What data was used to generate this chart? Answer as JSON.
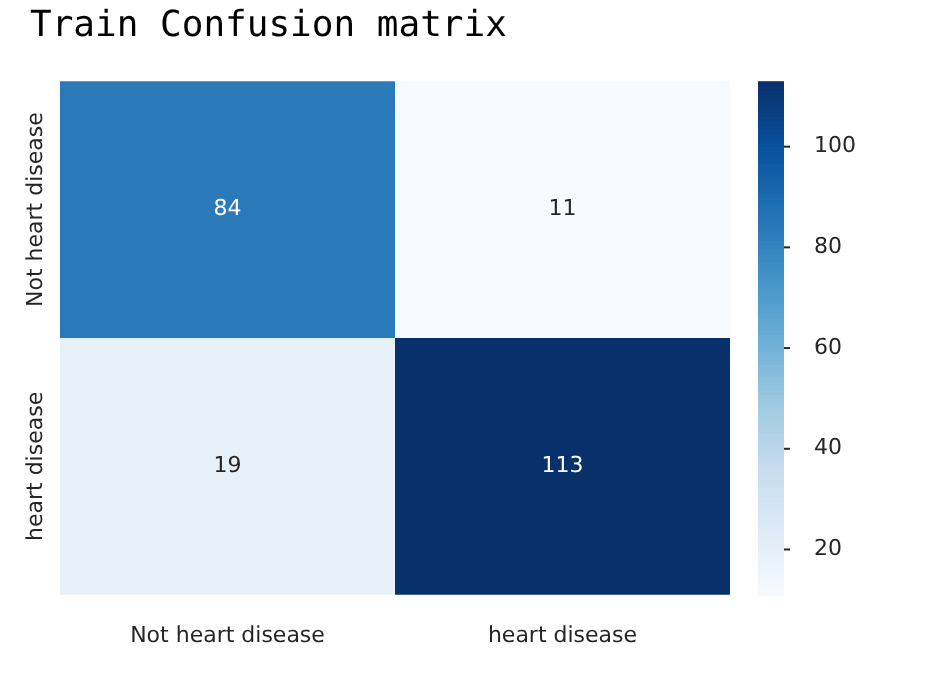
{
  "chart_data": {
    "type": "heatmap",
    "title": "Train Confusion matrix",
    "categories": [
      "Not heart disease",
      "heart disease"
    ],
    "y_categories": [
      "Not heart disease",
      "heart disease"
    ],
    "cells": [
      [
        84,
        11
      ],
      [
        19,
        113
      ]
    ],
    "data_labels": true,
    "clim": [
      11,
      113
    ],
    "cticks": [
      20,
      40,
      60,
      80,
      100
    ]
  }
}
